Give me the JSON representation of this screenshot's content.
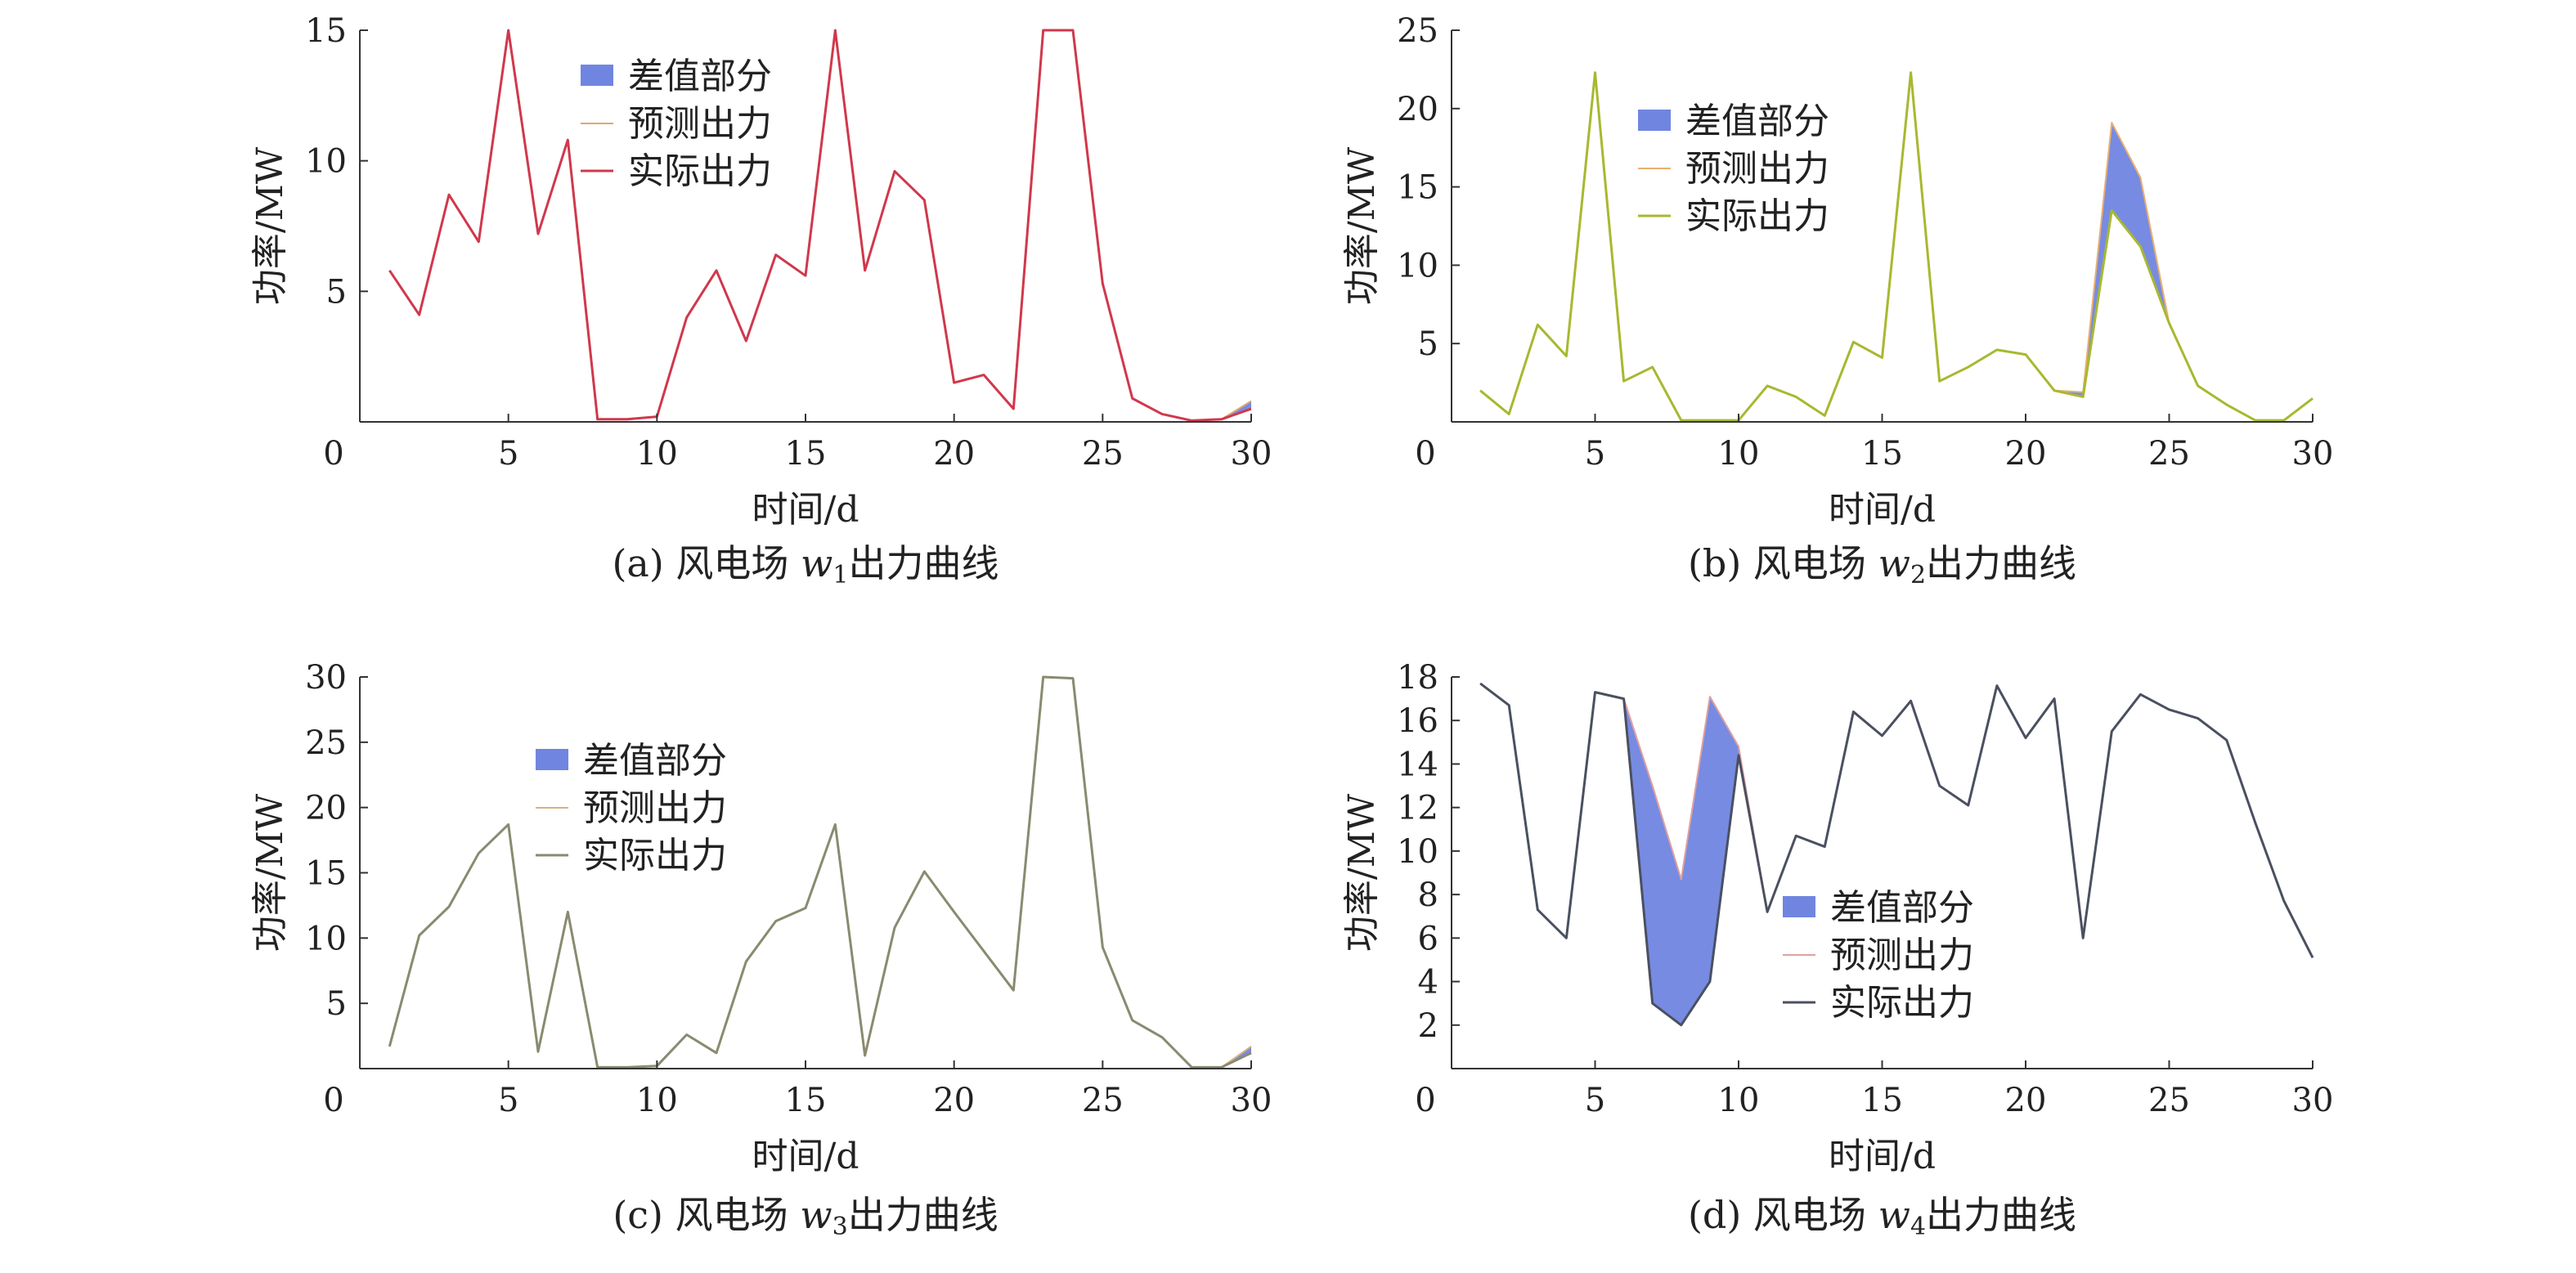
{
  "chart_data": [
    {
      "type": "line",
      "caption": {
        "prefix": "(a) 风电场 ",
        "var": "w",
        "sub": "1",
        "suffix": "出力曲线"
      },
      "xlabel": "时间/d",
      "ylabel": "功率/MW",
      "xlim": [
        0,
        30
      ],
      "ylim": [
        0,
        15
      ],
      "xticks": [
        0,
        5,
        10,
        15,
        20,
        25,
        30
      ],
      "yticks": [
        5,
        10,
        15
      ],
      "legend_position": "top-center",
      "legend": [
        "差值部分",
        "预测出力",
        "实际出力"
      ],
      "colors": {
        "actual": "#d0384c",
        "predicted": "#e0a86a",
        "fill": "#7085e0"
      },
      "x": [
        1,
        2,
        3,
        4,
        5,
        6,
        7,
        8,
        9,
        10,
        11,
        12,
        13,
        14,
        15,
        16,
        17,
        18,
        19,
        20,
        21,
        22,
        23,
        24,
        25,
        26,
        27,
        28,
        29,
        30
      ],
      "series": [
        {
          "name": "预测出力",
          "values": [
            5.8,
            4.1,
            8.7,
            6.9,
            15.0,
            7.2,
            10.8,
            0.1,
            0.1,
            0.2,
            4.0,
            5.8,
            3.1,
            6.4,
            5.6,
            15.0,
            5.8,
            9.6,
            8.5,
            1.5,
            1.8,
            0.5,
            15.0,
            15.0,
            5.3,
            0.9,
            0.3,
            0.05,
            0.1,
            0.8
          ]
        },
        {
          "name": "实际出力",
          "values": [
            5.8,
            4.1,
            8.7,
            6.9,
            15.0,
            7.2,
            10.8,
            0.1,
            0.1,
            0.2,
            4.0,
            5.8,
            3.1,
            6.4,
            5.6,
            15.0,
            5.8,
            9.6,
            8.5,
            1.5,
            1.8,
            0.5,
            15.0,
            15.0,
            5.3,
            0.9,
            0.3,
            0.05,
            0.1,
            0.5
          ]
        }
      ]
    },
    {
      "type": "line",
      "caption": {
        "prefix": "(b) 风电场 ",
        "var": "w",
        "sub": "2",
        "suffix": "出力曲线"
      },
      "xlabel": "时间/d",
      "ylabel": "功率/MW",
      "xlim": [
        0,
        30
      ],
      "ylim": [
        0,
        25
      ],
      "xticks": [
        0,
        5,
        10,
        15,
        20,
        25,
        30
      ],
      "yticks": [
        5,
        10,
        15,
        20,
        25
      ],
      "legend_position": "top-center",
      "legend": [
        "差值部分",
        "预测出力",
        "实际出力"
      ],
      "colors": {
        "actual": "#a8b830",
        "predicted": "#e8b070",
        "fill": "#7085e0"
      },
      "x": [
        1,
        2,
        3,
        4,
        5,
        6,
        7,
        8,
        9,
        10,
        11,
        12,
        13,
        14,
        15,
        16,
        17,
        18,
        19,
        20,
        21,
        22,
        23,
        24,
        25,
        26,
        27,
        28,
        29,
        30
      ],
      "series": [
        {
          "name": "预测出力",
          "values": [
            2.0,
            0.5,
            6.2,
            4.2,
            22.3,
            2.6,
            3.5,
            0.1,
            0.1,
            0.1,
            2.3,
            1.6,
            0.4,
            5.1,
            4.1,
            22.3,
            2.6,
            3.5,
            4.6,
            4.3,
            2.0,
            1.9,
            19.1,
            15.6,
            6.3,
            2.3,
            1.1,
            0.1,
            0.1,
            1.5
          ]
        },
        {
          "name": "实际出力",
          "values": [
            2.0,
            0.5,
            6.2,
            4.2,
            22.3,
            2.6,
            3.5,
            0.1,
            0.1,
            0.1,
            2.3,
            1.6,
            0.4,
            5.1,
            4.1,
            22.3,
            2.6,
            3.5,
            4.6,
            4.3,
            2.0,
            1.6,
            13.5,
            11.2,
            6.3,
            2.3,
            1.1,
            0.1,
            0.1,
            1.5
          ]
        }
      ]
    },
    {
      "type": "line",
      "caption": {
        "prefix": "(c) 风电场 ",
        "var": "w",
        "sub": "3",
        "suffix": "出力曲线"
      },
      "xlabel": "时间/d",
      "ylabel": "功率/MW",
      "xlim": [
        0,
        30
      ],
      "ylim": [
        0,
        30
      ],
      "xticks": [
        0,
        5,
        10,
        15,
        20,
        25,
        30
      ],
      "yticks": [
        5,
        10,
        15,
        20,
        25,
        30
      ],
      "legend_position": "top-left",
      "legend": [
        "差值部分",
        "预测出力",
        "实际出力"
      ],
      "colors": {
        "actual": "#8a8a70",
        "predicted": "#d8b080",
        "fill": "#7085e0"
      },
      "x": [
        1,
        2,
        3,
        4,
        5,
        6,
        7,
        8,
        9,
        10,
        11,
        12,
        13,
        14,
        15,
        16,
        17,
        18,
        19,
        20,
        21,
        22,
        23,
        24,
        25,
        26,
        27,
        28,
        29,
        30
      ],
      "series": [
        {
          "name": "预测出力",
          "values": [
            1.7,
            10.2,
            12.4,
            16.5,
            18.7,
            1.3,
            12.0,
            0.1,
            0.1,
            0.2,
            2.6,
            1.2,
            8.2,
            11.3,
            12.3,
            18.7,
            1.0,
            10.8,
            15.1,
            12.0,
            9.0,
            6.0,
            30.0,
            29.9,
            9.3,
            3.7,
            2.4,
            0.1,
            0.1,
            1.7
          ]
        },
        {
          "name": "实际出力",
          "values": [
            1.7,
            10.2,
            12.4,
            16.5,
            18.7,
            1.3,
            12.0,
            0.1,
            0.1,
            0.2,
            2.6,
            1.2,
            8.2,
            11.3,
            12.3,
            18.7,
            1.0,
            10.8,
            15.1,
            12.0,
            9.0,
            6.0,
            30.0,
            29.9,
            9.3,
            3.7,
            2.4,
            0.1,
            0.1,
            1.2
          ]
        }
      ]
    },
    {
      "type": "line",
      "caption": {
        "prefix": "(d) 风电场 ",
        "var": "w",
        "sub": "4",
        "suffix": "出力曲线"
      },
      "xlabel": "时间/d",
      "ylabel": "功率/MW",
      "xlim": [
        0,
        30
      ],
      "ylim": [
        0,
        18
      ],
      "xticks": [
        0,
        5,
        10,
        15,
        20,
        25,
        30
      ],
      "yticks": [
        2,
        4,
        6,
        8,
        10,
        12,
        14,
        16,
        18
      ],
      "legend_position": "bottom-center",
      "legend": [
        "差值部分",
        "预测出力",
        "实际出力"
      ],
      "colors": {
        "actual": "#4a5060",
        "predicted": "#e0a0a0",
        "fill": "#7085e0"
      },
      "x": [
        1,
        2,
        3,
        4,
        5,
        6,
        7,
        8,
        9,
        10,
        11,
        12,
        13,
        14,
        15,
        16,
        17,
        18,
        19,
        20,
        21,
        22,
        23,
        24,
        25,
        26,
        27,
        28,
        29,
        30
      ],
      "series": [
        {
          "name": "预测出力",
          "values": [
            17.7,
            16.7,
            7.3,
            6.0,
            17.3,
            17.0,
            13.0,
            8.7,
            17.1,
            14.8,
            7.2,
            10.7,
            10.2,
            16.4,
            15.3,
            16.9,
            13.0,
            12.1,
            17.6,
            15.2,
            17.0,
            6.0,
            15.5,
            17.2,
            16.5,
            16.1,
            15.1,
            11.3,
            7.7,
            5.1
          ]
        },
        {
          "name": "实际出力",
          "values": [
            17.7,
            16.7,
            7.3,
            6.0,
            17.3,
            17.0,
            3.0,
            2.0,
            4.0,
            14.4,
            7.2,
            10.7,
            10.2,
            16.4,
            15.3,
            16.9,
            13.0,
            12.1,
            17.6,
            15.2,
            17.0,
            6.0,
            15.5,
            17.2,
            16.5,
            16.1,
            15.1,
            11.3,
            7.7,
            5.1
          ]
        }
      ]
    }
  ]
}
